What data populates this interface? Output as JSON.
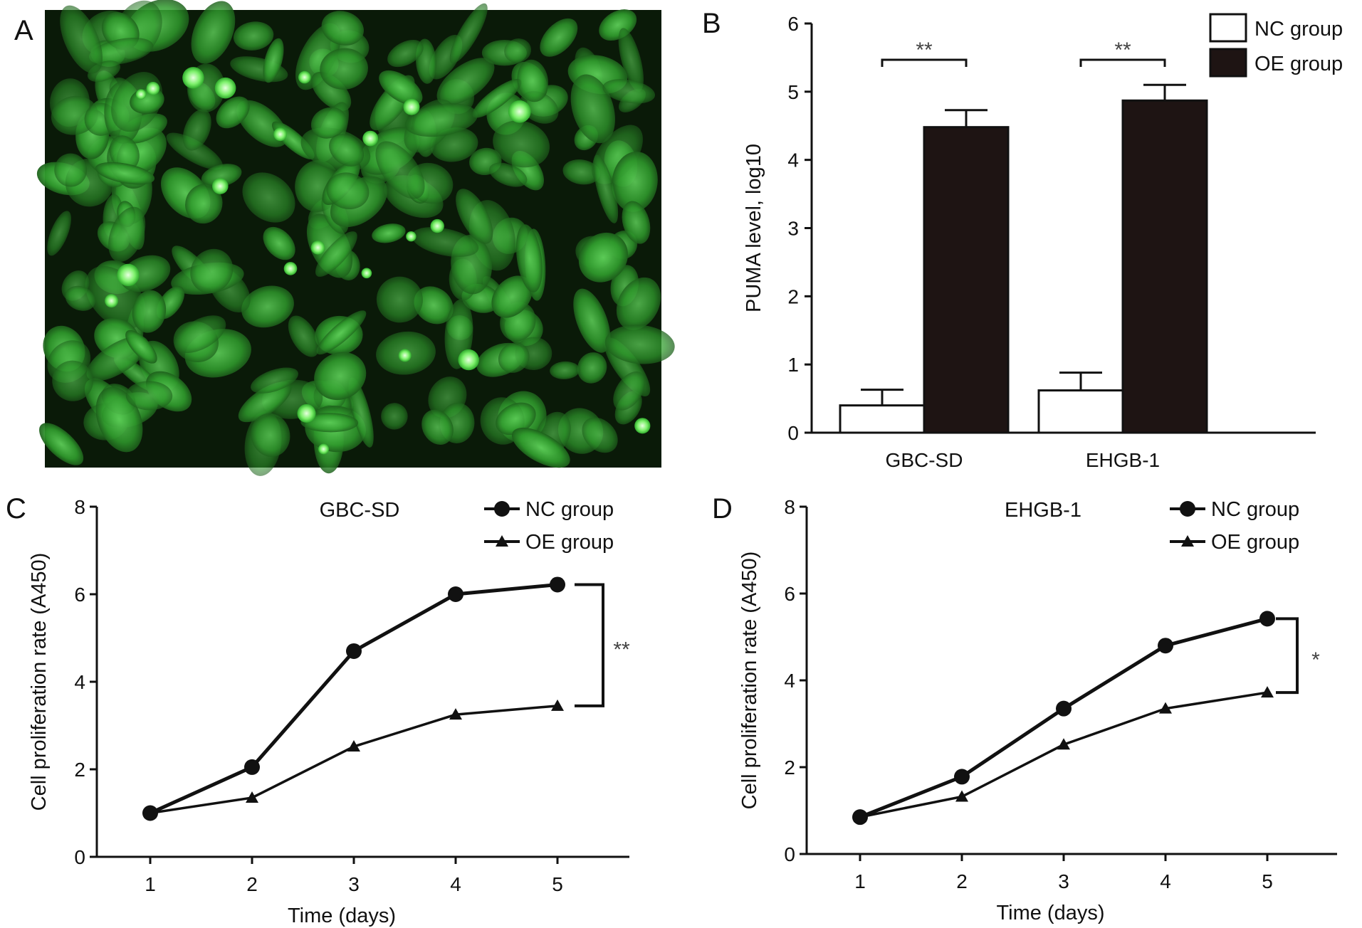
{
  "panels": {
    "a": {
      "letter": "A"
    },
    "b": {
      "letter": "B"
    },
    "c": {
      "letter": "C"
    },
    "d": {
      "letter": "D"
    }
  },
  "colors": {
    "micrograph_bg": "#0a1a08",
    "cell_green": "#3fae3a",
    "bright_green": "#7cf06a",
    "axis": "#111111",
    "oe_bar": "#1e1413",
    "nc_bar": "#ffffff"
  },
  "chart_data": [
    {
      "id": "b",
      "type": "bar",
      "categories": [
        "GBC-SD",
        "EHGB-1"
      ],
      "series": [
        {
          "name": "NC group",
          "values": [
            0.4,
            0.62
          ],
          "errors": [
            0.23,
            0.26
          ]
        },
        {
          "name": "OE group",
          "values": [
            4.48,
            4.87
          ],
          "errors": [
            0.25,
            0.23
          ]
        }
      ],
      "ylabel": "PUMA level, log10",
      "ylim": [
        0,
        6
      ],
      "yticks": [
        "0",
        "1",
        "2",
        "3",
        "4",
        "5",
        "6"
      ],
      "significance": [
        "**",
        "**"
      ],
      "legend": "top-right"
    },
    {
      "id": "c",
      "type": "line",
      "subtitle": "GBC-SD",
      "x": [
        1,
        2,
        3,
        4,
        5
      ],
      "xticks": [
        "1",
        "2",
        "3",
        "4",
        "5"
      ],
      "series": [
        {
          "name": "NC group",
          "marker": "circle",
          "values": [
            1.0,
            2.05,
            4.7,
            6.0,
            6.22
          ]
        },
        {
          "name": "OE group",
          "marker": "triangle",
          "values": [
            1.0,
            1.35,
            2.52,
            3.25,
            3.45
          ]
        }
      ],
      "xlabel": "Time (days)",
      "ylabel": "Cell proliferation rate (A450)",
      "ylim": [
        0,
        8
      ],
      "yticks": [
        "0",
        "2",
        "4",
        "6",
        "8"
      ],
      "significance": "**",
      "legend": "top-right"
    },
    {
      "id": "d",
      "type": "line",
      "subtitle": "EHGB-1",
      "x": [
        1,
        2,
        3,
        4,
        5
      ],
      "xticks": [
        "1",
        "2",
        "3",
        "4",
        "5"
      ],
      "series": [
        {
          "name": "NC group",
          "marker": "circle",
          "values": [
            0.85,
            1.78,
            3.35,
            4.8,
            5.42
          ]
        },
        {
          "name": "OE group",
          "marker": "triangle",
          "values": [
            0.85,
            1.32,
            2.52,
            3.35,
            3.72
          ]
        }
      ],
      "xlabel": "Time (days)",
      "ylabel": "Cell proliferation rate (A450)",
      "ylim": [
        0,
        8
      ],
      "yticks": [
        "0",
        "2",
        "4",
        "6",
        "8"
      ],
      "significance": "*",
      "legend": "top-right"
    }
  ]
}
